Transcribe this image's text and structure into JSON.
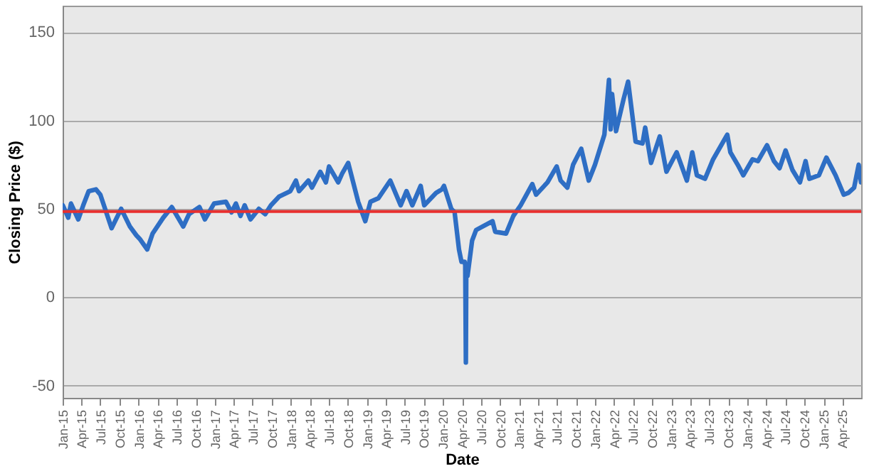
{
  "chart_data": {
    "type": "line",
    "xlabel": "Date",
    "ylabel": "Closing Price ($)",
    "x": [
      "2015-01-02",
      "2015-01-28",
      "2015-02-10",
      "2015-03-17",
      "2015-04-10",
      "2015-05-06",
      "2015-06-10",
      "2015-07-01",
      "2015-08-24",
      "2015-10-09",
      "2015-11-20",
      "2015-12-21",
      "2016-01-06",
      "2016-02-11",
      "2016-03-08",
      "2016-04-28",
      "2016-06-08",
      "2016-08-02",
      "2016-08-30",
      "2016-10-19",
      "2016-11-14",
      "2016-12-28",
      "2017-02-23",
      "2017-03-22",
      "2017-04-12",
      "2017-05-04",
      "2017-05-24",
      "2017-06-21",
      "2017-07-31",
      "2017-08-31",
      "2017-09-27",
      "2017-11-06",
      "2017-12-29",
      "2018-01-25",
      "2018-02-09",
      "2018-03-26",
      "2018-04-12",
      "2018-05-22",
      "2018-06-18",
      "2018-07-03",
      "2018-08-16",
      "2018-09-04",
      "2018-10-03",
      "2018-11-20",
      "2018-12-24",
      "2019-01-18",
      "2019-02-25",
      "2019-04-23",
      "2019-06-12",
      "2019-07-10",
      "2019-08-07",
      "2019-09-16",
      "2019-10-03",
      "2019-11-29",
      "2019-12-27",
      "2020-01-06",
      "2020-02-10",
      "2020-02-26",
      "2020-03-18",
      "2020-03-30",
      "2020-04-14",
      "2020-04-17",
      "2020-04-20",
      "2020-04-22",
      "2020-04-28",
      "2020-05-20",
      "2020-06-08",
      "2020-08-26",
      "2020-09-08",
      "2020-10-30",
      "2020-12-04",
      "2021-01-08",
      "2021-03-05",
      "2021-03-23",
      "2021-05-17",
      "2021-06-30",
      "2021-07-19",
      "2021-08-20",
      "2021-09-17",
      "2021-10-26",
      "2021-12-01",
      "2021-12-31",
      "2022-02-14",
      "2022-03-08",
      "2022-03-16",
      "2022-03-23",
      "2022-04-11",
      "2022-05-17",
      "2022-06-08",
      "2022-07-14",
      "2022-08-16",
      "2022-08-29",
      "2022-09-26",
      "2022-11-07",
      "2022-12-09",
      "2023-01-27",
      "2023-03-17",
      "2023-04-12",
      "2023-05-04",
      "2023-06-12",
      "2023-07-21",
      "2023-09-27",
      "2023-10-12",
      "2023-11-16",
      "2023-12-13",
      "2024-01-26",
      "2024-02-21",
      "2024-04-05",
      "2024-05-08",
      "2024-06-04",
      "2024-07-03",
      "2024-08-05",
      "2024-09-10",
      "2024-10-07",
      "2024-10-25",
      "2024-12-10",
      "2025-01-15",
      "2025-02-28",
      "2025-04-08",
      "2025-04-30",
      "2025-05-28",
      "2025-06-19",
      "2025-06-30"
    ],
    "values": [
      52,
      45,
      53,
      44,
      52,
      60,
      61,
      58,
      39,
      50,
      40,
      35,
      33,
      27,
      36,
      45,
      51,
      40,
      47,
      51,
      44,
      53,
      54,
      48,
      53,
      46,
      52,
      44,
      50,
      47,
      52,
      57,
      60,
      66,
      60,
      66,
      62,
      71,
      65,
      74,
      65,
      70,
      76,
      54,
      43,
      54,
      56,
      66,
      52,
      60,
      52,
      63,
      52,
      59,
      61,
      63,
      50,
      48,
      27,
      20,
      20,
      18,
      -37,
      14,
      12,
      32,
      38,
      43,
      37,
      36,
      46,
      52,
      64,
      58,
      65,
      74,
      66,
      62,
      75,
      84,
      66,
      75,
      92,
      123,
      95,
      115,
      94,
      112,
      122,
      88,
      87,
      96,
      76,
      91,
      71,
      82,
      66,
      82,
      69,
      67,
      78,
      92,
      82,
      75,
      69,
      78,
      77,
      86,
      77,
      73,
      83,
      72,
      65,
      77,
      67,
      69,
      79,
      69,
      58,
      59,
      62,
      75,
      65
    ],
    "color": "#2e6ec4",
    "xlim": [
      "2015-01-01",
      "2025-07-01"
    ],
    "xticks": [
      {
        "value": "2015-01-01",
        "label": "Jan-15"
      },
      {
        "value": "2015-04-01",
        "label": "Apr-15"
      },
      {
        "value": "2015-07-01",
        "label": "Jul-15"
      },
      {
        "value": "2015-10-01",
        "label": "Oct-15"
      },
      {
        "value": "2016-01-01",
        "label": "Jan-16"
      },
      {
        "value": "2016-04-01",
        "label": "Apr-16"
      },
      {
        "value": "2016-07-01",
        "label": "Jul-16"
      },
      {
        "value": "2016-10-01",
        "label": "Oct-16"
      },
      {
        "value": "2017-01-01",
        "label": "Jan-17"
      },
      {
        "value": "2017-04-01",
        "label": "Apr-17"
      },
      {
        "value": "2017-07-01",
        "label": "Jul-17"
      },
      {
        "value": "2017-10-01",
        "label": "Oct-17"
      },
      {
        "value": "2018-01-01",
        "label": "Jan-18"
      },
      {
        "value": "2018-04-01",
        "label": "Apr-18"
      },
      {
        "value": "2018-07-01",
        "label": "Jul-18"
      },
      {
        "value": "2018-10-01",
        "label": "Oct-18"
      },
      {
        "value": "2019-01-01",
        "label": "Jan-19"
      },
      {
        "value": "2019-04-01",
        "label": "Apr-19"
      },
      {
        "value": "2019-07-01",
        "label": "Jul-19"
      },
      {
        "value": "2019-10-01",
        "label": "Oct-19"
      },
      {
        "value": "2020-01-01",
        "label": "Jan-20"
      },
      {
        "value": "2020-04-01",
        "label": "Apr-20"
      },
      {
        "value": "2020-07-01",
        "label": "Jul-20"
      },
      {
        "value": "2020-10-01",
        "label": "Oct-20"
      },
      {
        "value": "2021-01-01",
        "label": "Jan-21"
      },
      {
        "value": "2021-04-01",
        "label": "Apr-21"
      },
      {
        "value": "2021-07-01",
        "label": "Jul-21"
      },
      {
        "value": "2021-10-01",
        "label": "Oct-21"
      },
      {
        "value": "2022-01-01",
        "label": "Jan-22"
      },
      {
        "value": "2022-04-01",
        "label": "Apr-22"
      },
      {
        "value": "2022-07-01",
        "label": "Jul-22"
      },
      {
        "value": "2022-10-01",
        "label": "Oct-22"
      },
      {
        "value": "2023-01-01",
        "label": "Jan-23"
      },
      {
        "value": "2023-04-01",
        "label": "Apr-23"
      },
      {
        "value": "2023-07-01",
        "label": "Jul-23"
      },
      {
        "value": "2023-10-01",
        "label": "Oct-23"
      },
      {
        "value": "2024-01-01",
        "label": "Jan-24"
      },
      {
        "value": "2024-04-01",
        "label": "Apr-24"
      },
      {
        "value": "2024-07-01",
        "label": "Jul-24"
      },
      {
        "value": "2024-10-01",
        "label": "Oct-24"
      },
      {
        "value": "2025-01-01",
        "label": "Jan-25"
      },
      {
        "value": "2025-04-01",
        "label": "Apr-25"
      }
    ],
    "ylim": [
      -57,
      165
    ],
    "yticks": [
      -50,
      0,
      50,
      100,
      150
    ],
    "grid": "y",
    "ref_lines": [
      {
        "axis": "y",
        "value": 48.5,
        "color": "#e8302f"
      }
    ]
  }
}
